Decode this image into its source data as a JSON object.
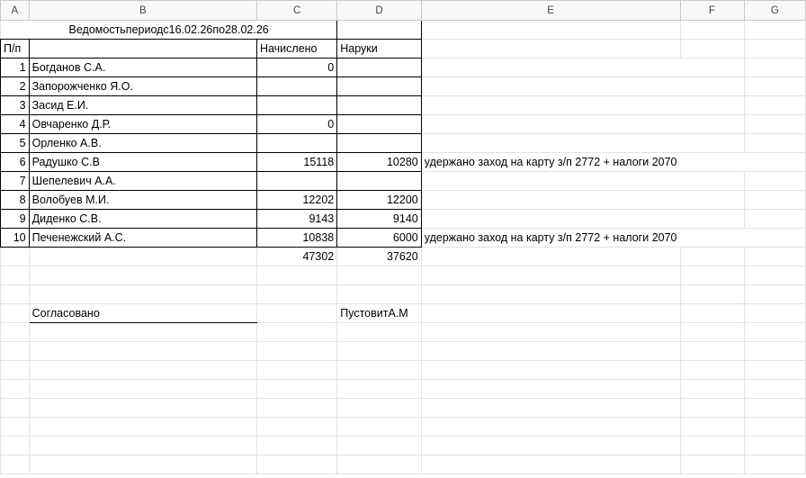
{
  "columns": [
    "A",
    "B",
    "C",
    "D",
    "E",
    "F",
    "G"
  ],
  "title": "Ведомостьпериодс16.02.26по28.02.26",
  "headers": {
    "num": "П/п",
    "name": "",
    "accrued": "Начислено",
    "paid": "Наруки"
  },
  "rows": [
    {
      "num": "1",
      "name": "Богданов С.А.",
      "accrued": "0",
      "paid": "",
      "note": ""
    },
    {
      "num": "2",
      "name": "Запорожченко Я.О.",
      "accrued": "",
      "paid": "",
      "note": ""
    },
    {
      "num": "3",
      "name": "Засид Е.И.",
      "accrued": "",
      "paid": "",
      "note": ""
    },
    {
      "num": "4",
      "name": "Овчаренко Д.Р.",
      "accrued": "0",
      "paid": "",
      "note": ""
    },
    {
      "num": "5",
      "name": "Орленко А.В.",
      "accrued": "",
      "paid": "",
      "note": ""
    },
    {
      "num": "6",
      "name": "Радушко С.В",
      "accrued": "15118",
      "paid": "10280",
      "note": "удержано  заход на карту з/п 2772 + налоги 2070"
    },
    {
      "num": "7",
      "name": "Шепелевич А.А.",
      "accrued": "",
      "paid": "",
      "note": ""
    },
    {
      "num": "8",
      "name": "Волобуев М.И.",
      "accrued": "12202",
      "paid": "12200",
      "note": ""
    },
    {
      "num": "9",
      "name": "Диденко С.В.",
      "accrued": "9143",
      "paid": "9140",
      "note": ""
    },
    {
      "num": "10",
      "name": "Печенежский А.С.",
      "accrued": "10838",
      "paid": "6000",
      "note": "удержано  заход на карту з/п 2772 + налоги 2070"
    }
  ],
  "totals": {
    "accrued": "47302",
    "paid": "37620"
  },
  "footer": {
    "approved": "Согласовано",
    "signer": "ПустовитА.М"
  }
}
